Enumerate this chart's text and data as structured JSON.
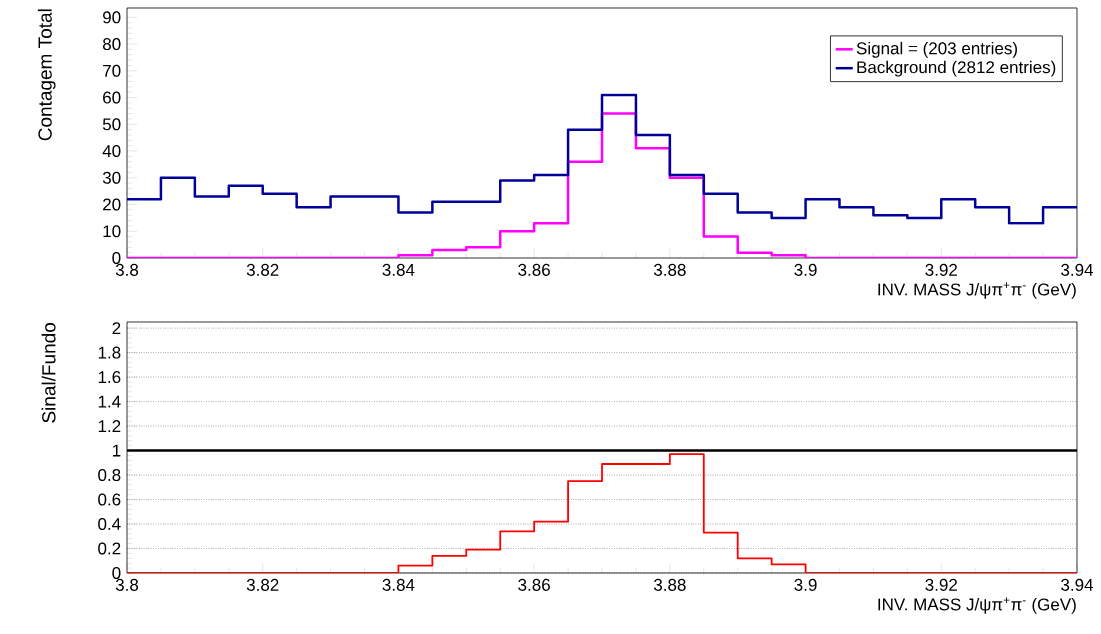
{
  "chart_data": [
    {
      "type": "histogram",
      "xlabel": "INV. MASS J/ψπ$^{+}$π$^{-}$ (GeV)",
      "ylabel": "Contagem Total",
      "bins": [
        3.8,
        3.805,
        3.81,
        3.815,
        3.82,
        3.825,
        3.83,
        3.835,
        3.84,
        3.845,
        3.85,
        3.855,
        3.86,
        3.865,
        3.87,
        3.875,
        3.88,
        3.885,
        3.89,
        3.895,
        3.9,
        3.905,
        3.91,
        3.915,
        3.92,
        3.925,
        3.93,
        3.935,
        3.94
      ],
      "series": [
        {
          "name": "Signal = (203 entries)",
          "color": "#ff00ff",
          "values": [
            0,
            0,
            0,
            0,
            0,
            0,
            0,
            0,
            1,
            3,
            4,
            10,
            13,
            36,
            54,
            41,
            30,
            8,
            2,
            1,
            0,
            0,
            0,
            0,
            0,
            0,
            0,
            0
          ]
        },
        {
          "name": "Background (2812 entries)",
          "color": "#000099",
          "values": [
            22,
            30,
            23,
            27,
            24,
            19,
            23,
            23,
            17,
            21,
            21,
            29,
            31,
            48,
            61,
            46,
            31,
            24,
            17,
            15,
            22,
            19,
            16,
            15,
            22,
            19,
            13,
            19
          ]
        }
      ],
      "xlim": [
        3.8,
        3.94
      ],
      "xticks": [
        3.8,
        3.82,
        3.84,
        3.86,
        3.88,
        3.9,
        3.92,
        3.94
      ],
      "ylim": [
        0,
        93.5
      ],
      "yticks": [
        0,
        10,
        20,
        30,
        40,
        50,
        60,
        70,
        80,
        90
      ],
      "legend": "top right"
    },
    {
      "type": "histogram",
      "xlabel": "INV. MASS J/ψπ$^{+}$π$^{-}$ (GeV)",
      "ylabel": "Sinal/Fundo",
      "bins": [
        3.8,
        3.805,
        3.81,
        3.815,
        3.82,
        3.825,
        3.83,
        3.835,
        3.84,
        3.845,
        3.85,
        3.855,
        3.86,
        3.865,
        3.87,
        3.875,
        3.88,
        3.885,
        3.89,
        3.895,
        3.9,
        3.905,
        3.91,
        3.915,
        3.92,
        3.925,
        3.93,
        3.935,
        3.94
      ],
      "values": [
        0,
        0,
        0,
        0,
        0,
        0,
        0,
        0,
        0.06,
        0.14,
        0.19,
        0.34,
        0.42,
        0.75,
        0.89,
        0.89,
        0.97,
        0.33,
        0.12,
        0.07,
        0,
        0,
        0,
        0,
        0,
        0,
        0,
        0
      ],
      "color": "#ff0000",
      "xlim": [
        3.8,
        3.94
      ],
      "xticks": [
        3.8,
        3.82,
        3.84,
        3.86,
        3.88,
        3.9,
        3.92,
        3.94
      ],
      "ylim": [
        0,
        2.05
      ],
      "yticks": [
        0,
        0.2,
        0.4,
        0.6,
        0.8,
        1,
        1.2,
        1.4,
        1.6,
        1.8,
        2
      ],
      "grid": "y",
      "ref_lines": [
        {
          "axis": "y",
          "value": 1,
          "color": "#000000"
        }
      ]
    }
  ]
}
